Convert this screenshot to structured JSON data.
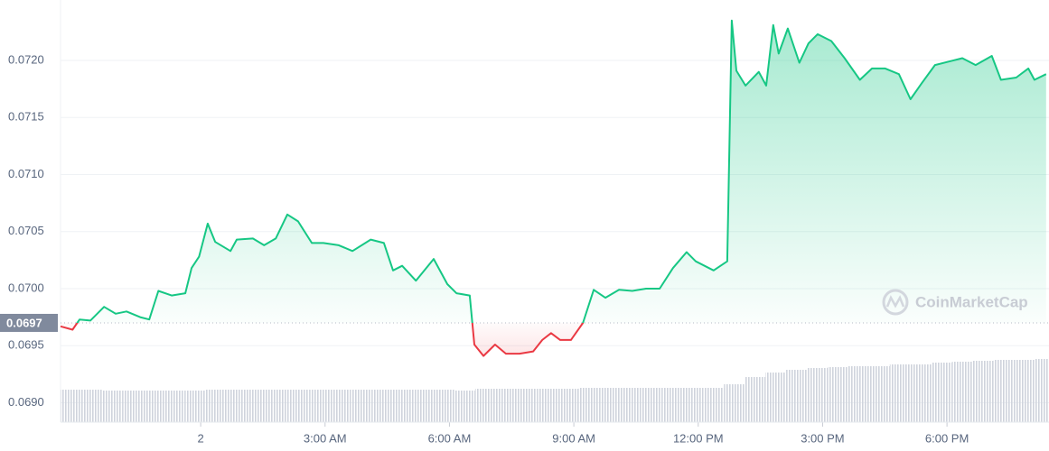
{
  "chart_data": {
    "type": "line",
    "watermark": "CoinMarketCap",
    "baseline": {
      "value": 0.0697,
      "label": "0.0697"
    },
    "up_color": "#16c784",
    "down_color": "#ea3943",
    "x": [
      -3.38,
      -3.09,
      -2.92,
      -2.66,
      -2.33,
      -2.05,
      -1.79,
      -1.46,
      -1.24,
      -1.02,
      -0.7,
      -0.37,
      -0.22,
      -0.04,
      0.17,
      0.35,
      0.72,
      0.87,
      1.26,
      1.53,
      1.81,
      2.09,
      2.35,
      2.68,
      2.96,
      3.33,
      3.66,
      4.1,
      4.42,
      4.64,
      4.86,
      5.19,
      5.62,
      5.95,
      6.17,
      6.49,
      6.6,
      6.82,
      7.1,
      7.36,
      7.69,
      8.02,
      8.24,
      8.45,
      8.67,
      8.93,
      9.22,
      9.48,
      9.76,
      10.09,
      10.41,
      10.74,
      11.07,
      11.39,
      11.72,
      11.94,
      12.37,
      12.7,
      12.81,
      12.92,
      13.14,
      13.46,
      13.64,
      13.81,
      13.94,
      14.16,
      14.44,
      14.66,
      14.88,
      15.21,
      15.53,
      15.9,
      16.19,
      16.51,
      16.84,
      17.12,
      17.39,
      17.71,
      18.04,
      18.37,
      18.69,
      19.08,
      19.3,
      19.67,
      19.96,
      20.11,
      20.39
    ],
    "values": [
      0.06967,
      0.06964,
      0.06973,
      0.06972,
      0.06984,
      0.06978,
      0.0698,
      0.06975,
      0.06973,
      0.06998,
      0.06994,
      0.06996,
      0.07018,
      0.07028,
      0.07057,
      0.07041,
      0.07033,
      0.07043,
      0.07044,
      0.07038,
      0.07044,
      0.07065,
      0.07059,
      0.0704,
      0.0704,
      0.07038,
      0.07033,
      0.07043,
      0.0704,
      0.07016,
      0.0702,
      0.07007,
      0.07026,
      0.07004,
      0.06996,
      0.06994,
      0.06951,
      0.06941,
      0.06951,
      0.06943,
      0.06943,
      0.06945,
      0.06955,
      0.06961,
      0.06955,
      0.06955,
      0.0697,
      0.06999,
      0.06992,
      0.06999,
      0.06998,
      0.07,
      0.07,
      0.07018,
      0.07032,
      0.07024,
      0.07016,
      0.07024,
      0.07235,
      0.07191,
      0.07178,
      0.0719,
      0.07178,
      0.07231,
      0.07206,
      0.07228,
      0.07198,
      0.07215,
      0.07223,
      0.07217,
      0.07202,
      0.07183,
      0.07193,
      0.07193,
      0.07188,
      0.07166,
      0.0718,
      0.07196,
      0.07199,
      0.07202,
      0.07196,
      0.07204,
      0.07183,
      0.07185,
      0.07193,
      0.07183,
      0.07188
    ],
    "xlim": [
      -3.38,
      20.46
    ],
    "ylim": [
      0.06883,
      0.07253
    ],
    "yticks": [
      {
        "value": 0.069,
        "label": "0.0690"
      },
      {
        "value": 0.0695,
        "label": "0.0695"
      },
      {
        "value": 0.07,
        "label": "0.0700"
      },
      {
        "value": 0.0705,
        "label": "0.0705"
      },
      {
        "value": 0.071,
        "label": "0.0710"
      },
      {
        "value": 0.0715,
        "label": "0.0715"
      },
      {
        "value": 0.072,
        "label": "0.0720"
      }
    ],
    "xticks": [
      {
        "value": 0,
        "label": "2"
      },
      {
        "value": 3,
        "label": "3:00 AM"
      },
      {
        "value": 6,
        "label": "6:00 AM"
      },
      {
        "value": 9,
        "label": "9:00 AM"
      },
      {
        "value": 12,
        "label": "12:00 PM"
      },
      {
        "value": 15,
        "label": "3:00 PM"
      },
      {
        "value": 18,
        "label": "6:00 PM"
      }
    ],
    "grid": true,
    "volume": {
      "color": "#c9cdd6",
      "vlim": [
        0,
        100
      ],
      "x": [
        -3.38,
        -2.88,
        -2.38,
        -1.88,
        -1.38,
        -0.88,
        -0.38,
        0.12,
        0.62,
        1.12,
        1.62,
        2.12,
        2.62,
        3.12,
        3.62,
        4.12,
        4.62,
        5.12,
        5.62,
        6.12,
        6.62,
        7.12,
        7.62,
        8.12,
        8.62,
        9.12,
        9.62,
        10.12,
        10.62,
        11.12,
        11.62,
        12.12,
        12.62,
        13.12,
        13.62,
        14.12,
        14.62,
        15.12,
        15.62,
        16.12,
        16.62,
        17.12,
        17.62,
        18.12,
        18.62,
        19.12,
        19.62,
        20.12
      ],
      "values": [
        36,
        36,
        35,
        35,
        35,
        35,
        35,
        36,
        36,
        36,
        36,
        36,
        36,
        36,
        36,
        36,
        36,
        36,
        36,
        35,
        37,
        37,
        37,
        37,
        37,
        38,
        38,
        38,
        38,
        38,
        38,
        38,
        42,
        50,
        55,
        58,
        60,
        61,
        62,
        62,
        64,
        64,
        66,
        67,
        68,
        69,
        69,
        70
      ]
    }
  }
}
